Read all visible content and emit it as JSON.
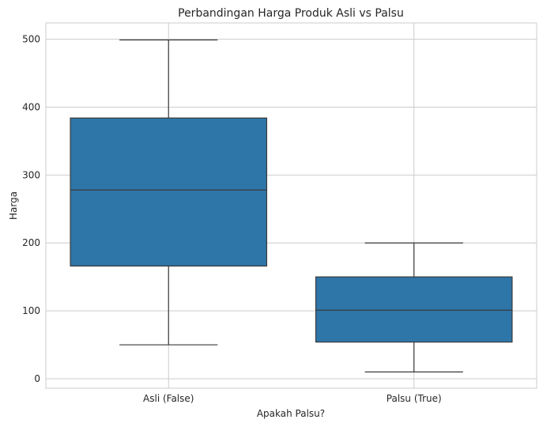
{
  "chart_data": {
    "type": "box",
    "title": "Perbandingan Harga Produk Asli vs Palsu",
    "xlabel": "Apakah Palsu?",
    "ylabel": "Harga",
    "ylim": [
      -14,
      524
    ],
    "yticks": [
      0,
      100,
      200,
      300,
      400,
      500
    ],
    "grid": true,
    "categories": [
      "Asli (False)",
      "Palsu (True)"
    ],
    "boxes": [
      {
        "category": "Asli (False)",
        "whisker_low": 50,
        "q1": 166,
        "median": 278,
        "q3": 384,
        "whisker_high": 499
      },
      {
        "category": "Palsu (True)",
        "whisker_low": 10,
        "q1": 54,
        "median": 101,
        "q3": 150,
        "whisker_high": 200
      }
    ],
    "colors": {
      "box_fill": "#2e75a8",
      "line": "#3b3b3b",
      "grid": "#cccccc"
    }
  }
}
